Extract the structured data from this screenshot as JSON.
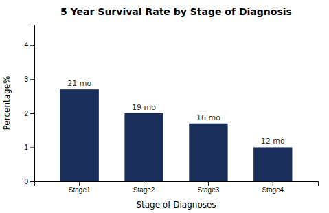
{
  "chart_data": {
    "type": "bar",
    "title": "5 Year Survival Rate by Stage of Diagnosis",
    "xlabel": "Stage of Diagnoses",
    "ylabel": "Percentage%",
    "categories": [
      "Stage1",
      "Stage2",
      "Stage3",
      "Stage4"
    ],
    "values": [
      2.7,
      2.0,
      1.7,
      1.0
    ],
    "value_labels": [
      "21 mo",
      "19 mo",
      "16 mo",
      "12 mo"
    ],
    "data_labels": true,
    "color": "#1a2e5a",
    "ylim": [
      0,
      4.6
    ],
    "yticks": [
      0,
      1,
      2,
      3,
      4
    ],
    "grid": false
  }
}
